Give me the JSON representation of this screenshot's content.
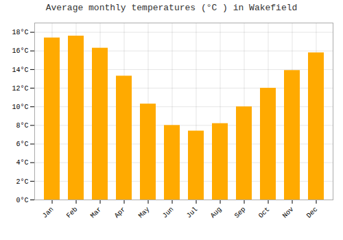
{
  "chart_data": {
    "type": "bar",
    "title": "Average monthly temperatures (°C ) in Wakefield",
    "categories": [
      "Jan",
      "Feb",
      "Mar",
      "Apr",
      "May",
      "Jun",
      "Jul",
      "Aug",
      "Sep",
      "Oct",
      "Nov",
      "Dec"
    ],
    "values": [
      17.4,
      17.6,
      16.3,
      13.3,
      10.3,
      8.0,
      7.4,
      8.2,
      10.0,
      12.0,
      13.9,
      15.8
    ],
    "color": "#FFAA00",
    "ylim": [
      0,
      19
    ],
    "yticks": [
      {
        "value": 0,
        "label": "0°C"
      },
      {
        "value": 2,
        "label": "2°C"
      },
      {
        "value": 4,
        "label": "4°C"
      },
      {
        "value": 6,
        "label": "6°C"
      },
      {
        "value": 8,
        "label": "8°C"
      },
      {
        "value": 10,
        "label": "10°C"
      },
      {
        "value": 12,
        "label": "12°C"
      },
      {
        "value": 14,
        "label": "14°C"
      },
      {
        "value": 16,
        "label": "16°C"
      },
      {
        "value": 18,
        "label": "18°C"
      }
    ],
    "grid": true
  }
}
